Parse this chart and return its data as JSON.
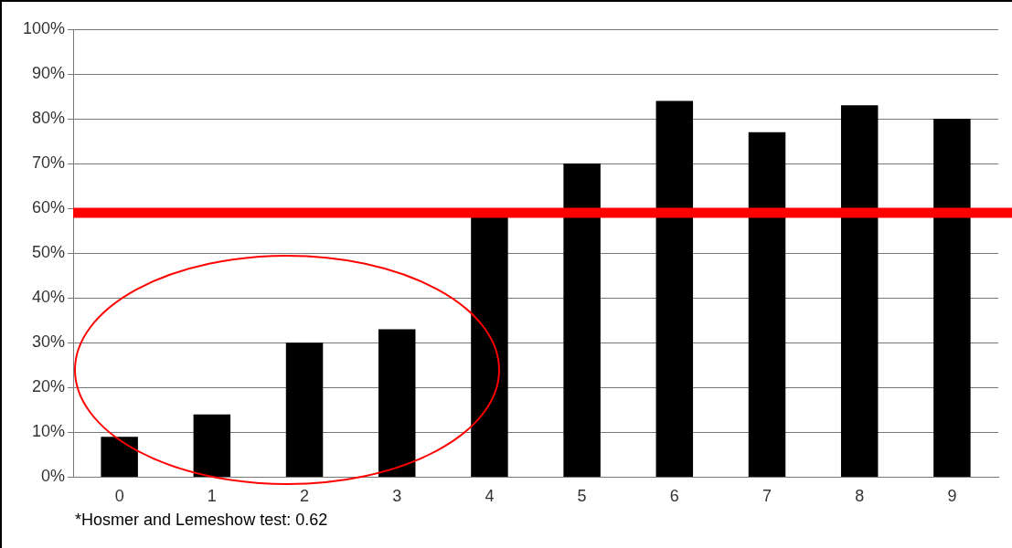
{
  "chart_data": {
    "type": "bar",
    "categories": [
      "0",
      "1",
      "2",
      "3",
      "4",
      "5",
      "6",
      "7",
      "8",
      "9"
    ],
    "values": [
      9,
      14,
      30,
      33,
      58,
      70,
      84,
      77,
      83,
      80
    ],
    "color": "#000000",
    "ylim": [
      0,
      100
    ],
    "yticks": [
      {
        "value": 0,
        "label": "0%"
      },
      {
        "value": 10,
        "label": "10%"
      },
      {
        "value": 20,
        "label": "20%"
      },
      {
        "value": 30,
        "label": "30%"
      },
      {
        "value": 40,
        "label": "40%"
      },
      {
        "value": 50,
        "label": "50%"
      },
      {
        "value": 60,
        "label": "60%"
      },
      {
        "value": 70,
        "label": "70%"
      },
      {
        "value": 80,
        "label": "80%"
      },
      {
        "value": 90,
        "label": "90%"
      },
      {
        "value": 100,
        "label": "100%"
      }
    ],
    "grid": "y",
    "legend": false,
    "ref_lines": [
      {
        "axis": "y",
        "value": 59,
        "color": "#ff0000",
        "line_style": "solid"
      }
    ],
    "annotations": [
      "*Hosmer and Lemeshow test: 0.62"
    ]
  }
}
